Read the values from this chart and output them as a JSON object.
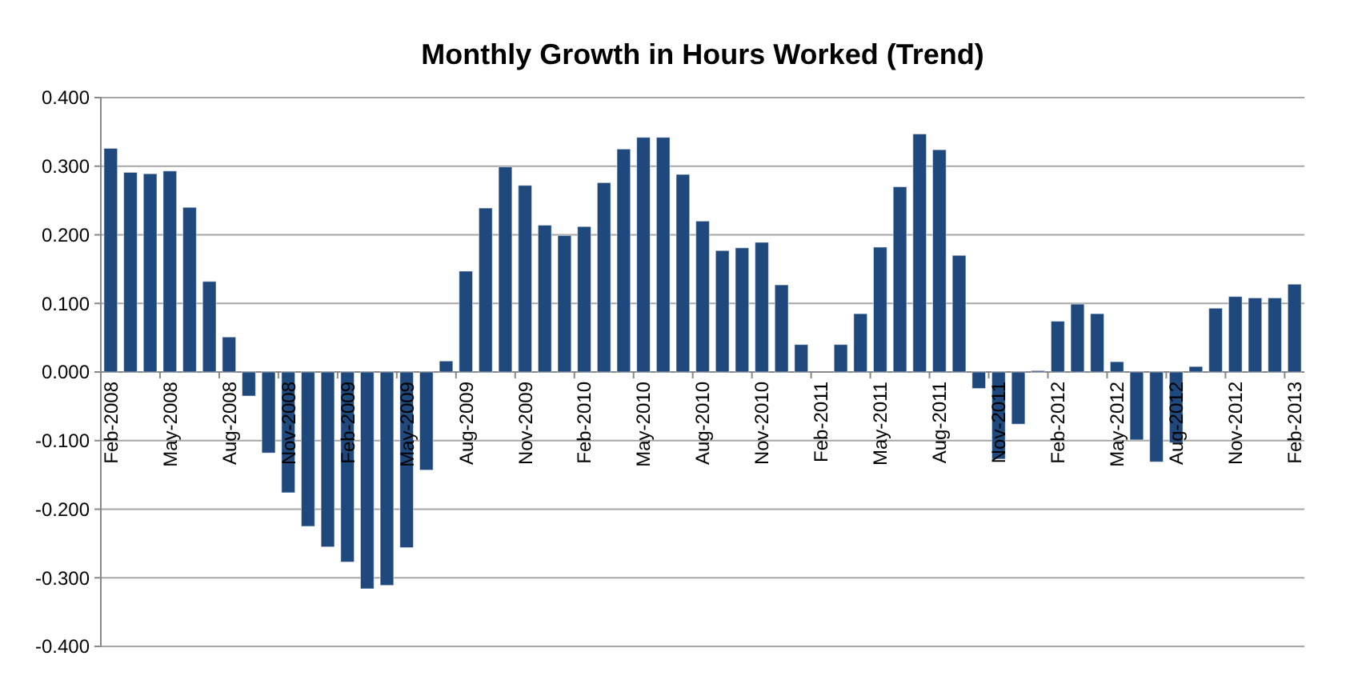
{
  "chart_data": {
    "type": "bar",
    "title": "Monthly Growth in Hours Worked (Trend)",
    "categories": [
      "Feb-2008",
      null,
      null,
      "May-2008",
      null,
      null,
      "Aug-2008",
      null,
      null,
      "Nov-2008",
      null,
      null,
      "Feb-2009",
      null,
      null,
      "May-2009",
      null,
      null,
      "Aug-2009",
      null,
      null,
      "Nov-2009",
      null,
      null,
      "Feb-2010",
      null,
      null,
      "May-2010",
      null,
      null,
      "Aug-2010",
      null,
      null,
      "Nov-2010",
      null,
      null,
      "Feb-2011",
      null,
      null,
      "May-2011",
      null,
      null,
      "Aug-2011",
      null,
      null,
      "Nov-2011",
      null,
      null,
      "Feb-2012",
      null,
      null,
      "May-2012",
      null,
      null,
      "Aug-2012",
      null,
      null,
      "Nov-2012",
      null,
      null,
      "Feb-2013"
    ],
    "values": [
      0.326,
      0.291,
      0.289,
      0.293,
      0.24,
      0.132,
      0.051,
      -0.035,
      -0.118,
      -0.176,
      -0.225,
      -0.255,
      -0.277,
      -0.316,
      -0.311,
      -0.256,
      -0.143,
      0.016,
      0.147,
      0.239,
      0.299,
      0.272,
      0.214,
      0.199,
      0.212,
      0.276,
      0.325,
      0.342,
      0.342,
      0.288,
      0.22,
      0.177,
      0.181,
      0.189,
      0.127,
      0.04,
      0,
      0.04,
      0.085,
      0.182,
      0.27,
      0.347,
      0.324,
      0.17,
      -0.024,
      -0.127,
      -0.076,
      0.002,
      0.074,
      0.099,
      0.085,
      0.015,
      -0.099,
      -0.131,
      -0.103,
      0.008,
      0.093,
      0.11,
      0.108,
      0.108,
      0.128
    ],
    "color": "#1f497d",
    "ylim": [
      -0.4,
      0.4
    ],
    "yticks": [
      {
        "value": -0.4,
        "label": "-0.400"
      },
      {
        "value": -0.3,
        "label": "-0.300"
      },
      {
        "value": -0.2,
        "label": "-0.200"
      },
      {
        "value": -0.1,
        "label": "-0.100"
      },
      {
        "value": 0,
        "label": "0.000"
      },
      {
        "value": 0.1,
        "label": "0.100"
      },
      {
        "value": 0.2,
        "label": "0.200"
      },
      {
        "value": 0.3,
        "label": "0.300"
      },
      {
        "value": 0.4,
        "label": "0.400"
      }
    ],
    "grid": "y"
  }
}
